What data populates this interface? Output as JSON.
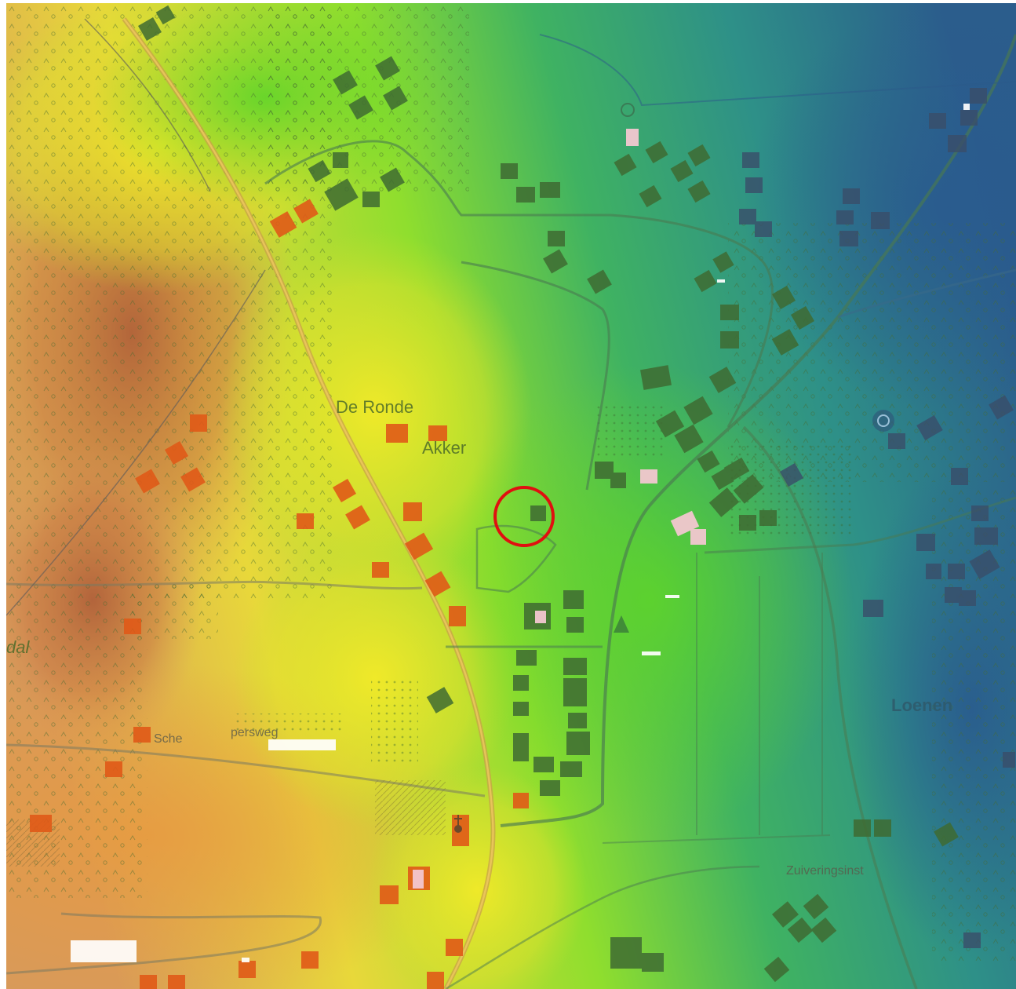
{
  "map": {
    "labels": {
      "de_ronde": "De Ronde",
      "akker": "Akker",
      "loenen": "Loenen",
      "dal": "dal",
      "schepersweg_1": "Sche",
      "schepersweg_2": "persweg",
      "zuiveringsinst": "Zuiveringsinst"
    },
    "marker": {
      "color": "#e01010",
      "icon": "circle-marker"
    },
    "colors": {
      "height_low": "#2a5f8a",
      "height_mid_low": "#2e9a86",
      "height_mid": "#6ad42c",
      "height_high": "#e6e21e",
      "height_top": "#d27a48",
      "building_dark": "#3f6b32",
      "building_orange": "#e05a18"
    }
  }
}
